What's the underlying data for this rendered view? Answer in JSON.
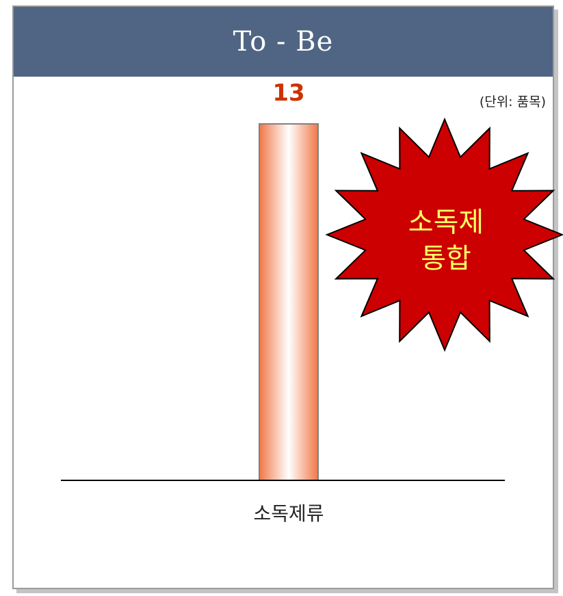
{
  "header": {
    "title": "To - Be"
  },
  "unit_note": "(단위: 품목)",
  "starburst": {
    "line1": "소독제",
    "line2": "통합",
    "fill": "#cc0000",
    "text_color": "#ffff66"
  },
  "colors": {
    "header_bg": "#506583",
    "bar_edge": "#f07848",
    "value_label": "#cc3300"
  },
  "chart_data": {
    "type": "bar",
    "categories": [
      "소독제류"
    ],
    "values": [
      13
    ],
    "title": "",
    "xlabel": "",
    "ylabel": "",
    "ylim": [
      0,
      13.9
    ],
    "grid": false,
    "legend": "none"
  }
}
